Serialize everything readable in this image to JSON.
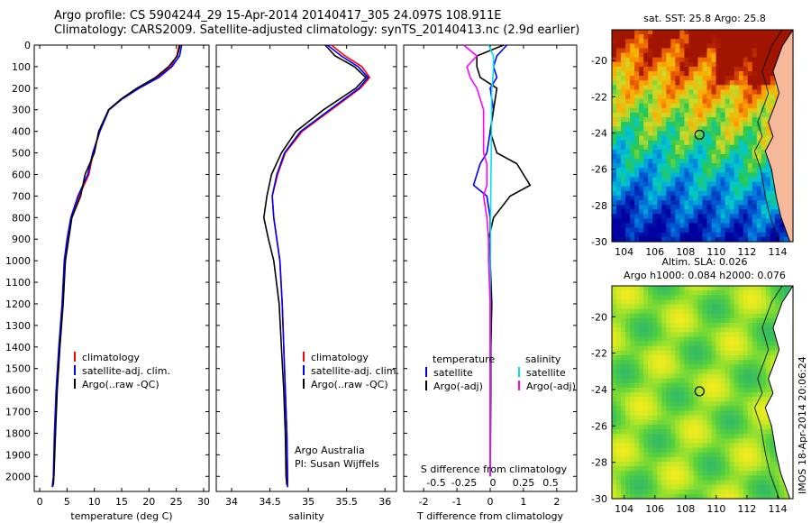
{
  "header": {
    "line1": "Argo profile: CS 5904244_29 15-Apr-2014 20140417_305 24.097S 108.911E",
    "line2": "Climatology: CARS2009. Satellite-adjusted climatology: synTS_20140413.nc (2.9d earlier)"
  },
  "credit": "IMOS 18-Apr-2014 20:06:24",
  "colors": {
    "climatology": "#ff0000",
    "satellite": "#0000ff",
    "argo": "#000000",
    "sal_satellite": "#00e0f0",
    "sal_argo": "#ff00ff"
  },
  "chart_data": [
    {
      "type": "line",
      "id": "temperature",
      "xlabel": "temperature (deg C)",
      "xlim": [
        -1,
        31
      ],
      "xticks": [
        0,
        5,
        10,
        15,
        20,
        25,
        30
      ],
      "ylim": [
        2070,
        0
      ],
      "yticks": [
        0,
        100,
        200,
        300,
        400,
        500,
        600,
        700,
        800,
        900,
        1000,
        1100,
        1200,
        1300,
        1400,
        1500,
        1600,
        1700,
        1800,
        1900,
        2000
      ],
      "legend": [
        "climatology",
        "satellite-adj. clim.",
        "Argo(..raw -QC)"
      ],
      "series": [
        {
          "name": "climatology",
          "color": "#ff0000",
          "x": [
            25.5,
            25.1,
            24.0,
            21.5,
            18.0,
            15.0,
            12.6,
            11.0,
            9.8,
            9.0,
            7.2,
            5.8,
            5.1,
            4.6,
            4.2,
            3.6,
            3.1,
            2.8,
            2.6,
            2.4
          ],
          "y": [
            0,
            50,
            100,
            150,
            200,
            250,
            300,
            400,
            500,
            600,
            700,
            800,
            900,
            1000,
            1200,
            1400,
            1600,
            1800,
            2000,
            2050
          ]
        },
        {
          "name": "satellite-adj. clim.",
          "color": "#0000ff",
          "x": [
            26.0,
            25.6,
            24.2,
            21.8,
            18.2,
            15.1,
            12.7,
            11.0,
            9.7,
            8.8,
            7.0,
            5.7,
            5.0,
            4.5,
            4.1,
            3.5,
            3.0,
            2.7,
            2.5,
            2.3
          ],
          "y": [
            0,
            50,
            100,
            150,
            200,
            250,
            300,
            400,
            500,
            600,
            700,
            800,
            900,
            1000,
            1200,
            1400,
            1600,
            1800,
            2000,
            2050
          ]
        },
        {
          "name": "Argo(..raw -QC)",
          "color": "#000000",
          "x": [
            25.7,
            25.2,
            23.6,
            21.2,
            17.8,
            14.9,
            12.6,
            10.8,
            10.0,
            8.3,
            7.5,
            5.9,
            5.3,
            4.7,
            4.3,
            3.7,
            3.2,
            2.9,
            2.6,
            2.5
          ],
          "y": [
            0,
            50,
            100,
            150,
            200,
            250,
            300,
            400,
            500,
            600,
            700,
            800,
            900,
            1000,
            1200,
            1400,
            1600,
            1800,
            2000,
            2040
          ]
        }
      ]
    },
    {
      "type": "line",
      "id": "salinity",
      "xlabel": "salinity",
      "xlim": [
        33.8,
        36.15
      ],
      "xticks": [
        34,
        34.5,
        35,
        35.5,
        36
      ],
      "ylim": [
        2070,
        0
      ],
      "legend": [
        "climatology",
        "satellite-adj. clim.",
        "Argo(..raw -QC)"
      ],
      "annotation": [
        "Argo Australia",
        "PI: Susan Wijffels"
      ],
      "series": [
        {
          "name": "climatology",
          "color": "#ff0000",
          "x": [
            35.3,
            35.48,
            35.7,
            35.8,
            35.68,
            35.3,
            34.92,
            34.7,
            34.6,
            34.53,
            34.55,
            34.59,
            34.63,
            34.66,
            34.68,
            34.7,
            34.72,
            34.73,
            34.73
          ],
          "y": [
            0,
            50,
            100,
            150,
            200,
            300,
            400,
            500,
            600,
            700,
            800,
            900,
            1000,
            1200,
            1400,
            1600,
            1800,
            2000,
            2050
          ]
        },
        {
          "name": "satellite-adj. clim.",
          "color": "#0000ff",
          "x": [
            35.25,
            35.43,
            35.65,
            35.78,
            35.66,
            35.28,
            34.9,
            34.69,
            34.59,
            34.53,
            34.55,
            34.59,
            34.63,
            34.66,
            34.68,
            34.7,
            34.72,
            34.73,
            34.73
          ],
          "y": [
            0,
            50,
            100,
            150,
            200,
            300,
            400,
            500,
            600,
            700,
            800,
            900,
            1000,
            1200,
            1400,
            1600,
            1800,
            2000,
            2050
          ]
        },
        {
          "name": "Argo(..raw -QC)",
          "color": "#000000",
          "x": [
            35.22,
            35.35,
            35.6,
            35.75,
            35.62,
            35.2,
            34.84,
            34.65,
            34.52,
            34.46,
            34.42,
            34.48,
            34.55,
            34.62,
            34.65,
            34.68,
            34.7,
            34.71,
            34.72
          ],
          "y": [
            0,
            50,
            100,
            150,
            200,
            300,
            400,
            500,
            600,
            700,
            800,
            900,
            1000,
            1200,
            1400,
            1600,
            1800,
            2000,
            2040
          ]
        }
      ]
    },
    {
      "type": "line",
      "id": "differences",
      "xlabel_top": "S difference from climatology",
      "xticks_top": [
        "-0.5",
        "-0.25",
        "0",
        "0.25",
        "0.5"
      ],
      "xlabel": "T difference from climatology",
      "xlim": [
        -2.6,
        2.6
      ],
      "xticks": [
        -2,
        -1,
        0,
        1,
        2
      ],
      "ylim": [
        2070,
        0
      ],
      "legend_headers": [
        "temperature",
        "salinity"
      ],
      "legend": [
        "satellite",
        "Argo(-adj)",
        "satellite",
        "Argo(-adj)"
      ],
      "series": [
        {
          "name": "satellite",
          "group": "temperature",
          "color": "#0000ff",
          "x": [
            0.5,
            0.2,
            0.1,
            0.2,
            0.0,
            0.1,
            0.0,
            -0.1,
            -0.3,
            -0.5,
            -0.1,
            0.0,
            0.0,
            0.0,
            0.0,
            0.0,
            0.0,
            0.0,
            0.0
          ],
          "y": [
            0,
            50,
            100,
            150,
            200,
            300,
            400,
            500,
            550,
            650,
            700,
            800,
            900,
            1000,
            1200,
            1400,
            1600,
            1800,
            2000
          ]
        },
        {
          "name": "Argo(-adj)",
          "group": "temperature",
          "color": "#000000",
          "x": [
            0.4,
            -0.4,
            -0.4,
            -0.3,
            0.2,
            0.1,
            0.0,
            0.2,
            0.8,
            1.2,
            0.6,
            0.1,
            -0.05,
            0.0,
            0.05,
            0.02,
            0.02,
            0.01,
            0.0
          ],
          "y": [
            0,
            50,
            100,
            150,
            200,
            300,
            400,
            500,
            550,
            650,
            700,
            800,
            900,
            1000,
            1200,
            1400,
            1600,
            1800,
            2000
          ]
        },
        {
          "name": "satellite",
          "group": "salinity",
          "color": "#00e0f0",
          "x": [
            -0.05,
            0.1,
            0.1,
            0.08,
            0.05,
            0.04,
            0.04,
            0.03,
            0.03,
            0.02,
            0.02,
            0.01,
            0.01,
            0.0,
            0.0,
            0.0,
            0.0,
            0.0,
            0.0
          ],
          "y": [
            0,
            50,
            100,
            150,
            200,
            300,
            400,
            500,
            550,
            650,
            700,
            800,
            900,
            1000,
            1200,
            1400,
            1600,
            1800,
            2000
          ]
        },
        {
          "name": "Argo(-adj)",
          "group": "salinity",
          "color": "#ff00ff",
          "x": [
            -0.8,
            -0.4,
            -0.7,
            -0.6,
            -0.4,
            -0.2,
            -0.2,
            -0.2,
            -0.1,
            -0.1,
            -0.2,
            -0.1,
            -0.05,
            -0.05,
            0.0,
            0.0,
            0.0,
            0.0,
            0.0
          ],
          "y": [
            0,
            50,
            100,
            150,
            200,
            300,
            400,
            500,
            550,
            650,
            700,
            800,
            900,
            1000,
            1200,
            1400,
            1600,
            1800,
            2000
          ]
        }
      ]
    },
    {
      "type": "heatmap",
      "id": "sst-map",
      "title": "sat. SST: 25.8 Argo: 25.8",
      "xlim": [
        103.2,
        115
      ],
      "ylim": [
        -30,
        -18.3
      ],
      "xticks": [
        104,
        106,
        108,
        110,
        112,
        114
      ],
      "yticks": [
        -20,
        -22,
        -24,
        -26,
        -28,
        -30
      ],
      "marker": {
        "lon": 108.911,
        "lat": -24.097
      }
    },
    {
      "type": "heatmap",
      "id": "sla-map",
      "title": "Altim. SLA: 0.026",
      "subtitle": "Argo h1000: 0.084 h2000: 0.076",
      "xlim": [
        103.2,
        115
      ],
      "ylim": [
        -30,
        -18.3
      ],
      "xticks": [
        104,
        106,
        108,
        110,
        112,
        114
      ],
      "yticks": [
        -20,
        -22,
        -24,
        -26,
        -28,
        -30
      ],
      "marker": {
        "lon": 108.911,
        "lat": -24.097
      }
    }
  ]
}
